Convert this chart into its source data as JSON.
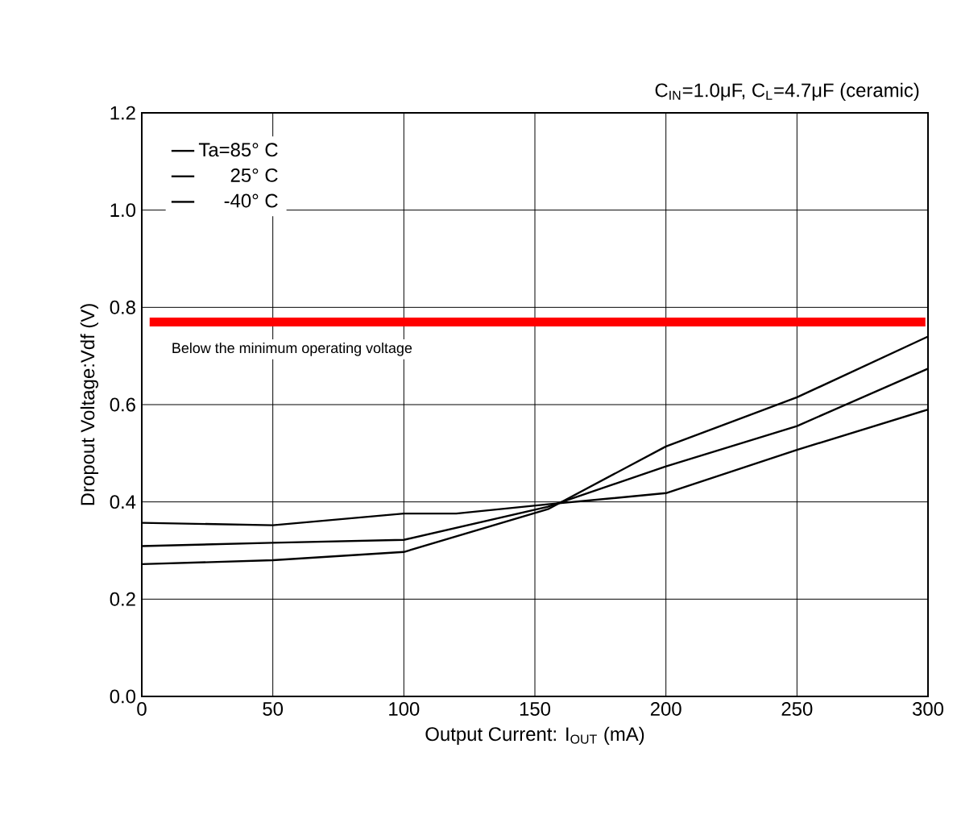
{
  "chart_data": {
    "type": "line",
    "subtitle": "C$_{IN}$=1.0μF, C$_{L}$=4.7μF (ceramic)",
    "xlabel": "Output Current: I$_{OUT}$ (mA)",
    "ylabel": "Dropout Voltage:Vdf (V)",
    "xlim": [
      0,
      300
    ],
    "ylim": [
      0,
      1.2
    ],
    "xticks": [
      0,
      50,
      100,
      150,
      200,
      250,
      300
    ],
    "yticks": [
      {
        "value": 0,
        "label": "0.0"
      },
      0.2,
      0.4,
      0.6,
      0.8,
      {
        "value": 1,
        "label": "1.0"
      },
      1.2
    ],
    "grid": true,
    "legend": "top left",
    "series": [
      {
        "name": "Ta=85° C",
        "color": "#000000",
        "x": [
          0,
          50,
          100,
          155,
          200,
          250,
          300
        ],
        "values": [
          0.272,
          0.28,
          0.297,
          0.385,
          0.514,
          0.615,
          0.74
        ]
      },
      {
        "name": "25° C",
        "color": "#000000",
        "x": [
          0,
          50,
          100,
          155,
          200,
          250,
          300
        ],
        "values": [
          0.309,
          0.316,
          0.322,
          0.39,
          0.473,
          0.556,
          0.674
        ]
      },
      {
        "name": "-40° C",
        "color": "#000000",
        "x": [
          0,
          50,
          100,
          120,
          155,
          200,
          250,
          300
        ],
        "values": [
          0.357,
          0.352,
          0.376,
          0.376,
          0.395,
          0.418,
          0.507,
          0.59
        ]
      }
    ],
    "ref_lines": [
      {
        "axis": "y",
        "value": 0.77,
        "label": "Below the minimum operating voltage",
        "color": "#ff0000"
      }
    ]
  }
}
